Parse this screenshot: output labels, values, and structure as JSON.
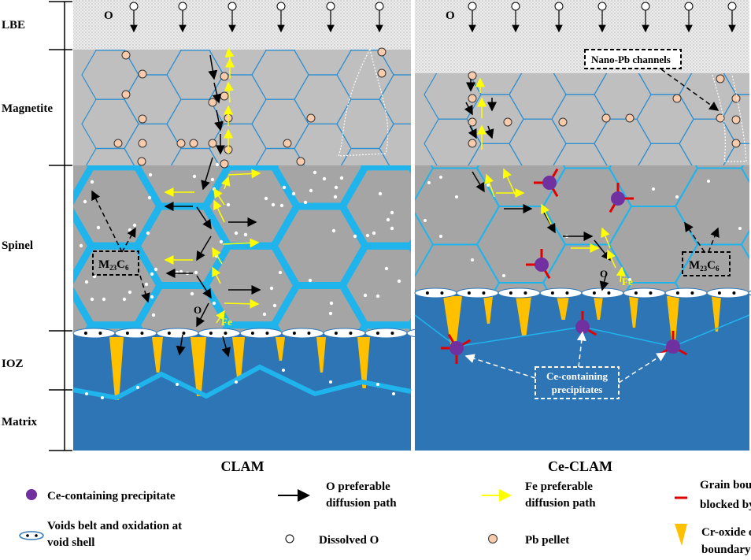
{
  "layers": {
    "lbe": "LBE",
    "magnetite": "Magnetite",
    "spinel": "Spinel",
    "ioz": "IOZ",
    "matrix": "Matrix"
  },
  "panels": {
    "left": {
      "caption": "CLAM",
      "o_label": "O",
      "box_label": "M",
      "box_sub1": "23",
      "box_mid": "C",
      "box_sub2": "6",
      "path_o": "O",
      "path_fe": "Fe"
    },
    "right": {
      "caption": "Ce-CLAM",
      "o_label": "O",
      "box_label": "M",
      "box_sub1": "23",
      "box_mid": "C",
      "box_sub2": "6",
      "path_o": "O",
      "path_fe": "Fe",
      "nano_pb": "Nano-Pb channels",
      "ce_box_line1": "Ce-containing",
      "ce_box_line2": "precipitates"
    }
  },
  "legend": [
    {
      "icon": "purple-dot-icon",
      "lines": [
        "Ce-containing precipitate"
      ]
    },
    {
      "icon": "black-arrow-icon",
      "lines": [
        "O preferable",
        "diffusion path"
      ]
    },
    {
      "icon": "yellow-arrow-icon",
      "lines": [
        "Fe preferable",
        "diffusion path"
      ]
    },
    {
      "icon": "red-line-icon",
      "lines": [
        "Grain boundary",
        "blocked by Ce"
      ]
    },
    {
      "icon": "void-ellipse-icon",
      "lines": [
        "Voids belt and oxidation at",
        "void shell"
      ]
    },
    {
      "icon": "white-circle-icon",
      "lines": [
        "Dissolved O"
      ]
    },
    {
      "icon": "pb-pellet-icon",
      "lines": [
        "Pb pellet"
      ]
    },
    {
      "icon": "yellow-wedge-icon",
      "lines": [
        "Cr-oxide on lath",
        "boundary"
      ]
    }
  ],
  "colors": {
    "lbe": "#e4e4e4",
    "magnetite": "#bfbfbf",
    "spinel": "#a5a5a5",
    "matrix": "#2e75b6",
    "grain_boundary": "#1fb4ec",
    "cr_oxide": "#ffc000",
    "ce_precipitate": "#7030a0",
    "blocked": "#e00000",
    "fe_path": "#ffff00",
    "pb": "#f8cbad"
  }
}
